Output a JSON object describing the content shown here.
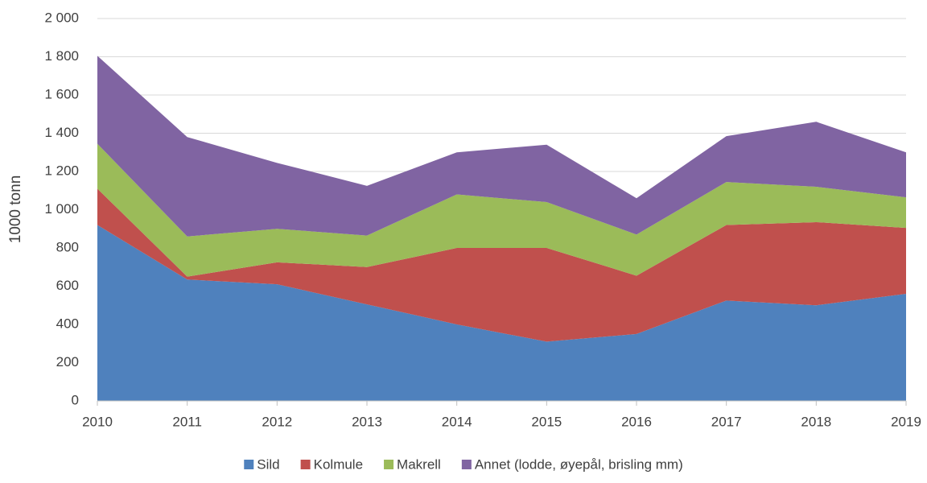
{
  "chart_data": {
    "type": "stacked-area",
    "y_label": "1000 tonn",
    "categories": [
      "2010",
      "2011",
      "2012",
      "2013",
      "2014",
      "2015",
      "2016",
      "2017",
      "2018",
      "2019"
    ],
    "series": [
      {
        "name": "Sild",
        "color": "#4f81bd",
        "values": [
          920,
          635,
          610,
          505,
          400,
          310,
          350,
          525,
          500,
          560
        ]
      },
      {
        "name": "Kolmule",
        "color": "#c0504d",
        "values": [
          190,
          15,
          115,
          195,
          400,
          490,
          305,
          395,
          435,
          345
        ]
      },
      {
        "name": "Makrell",
        "color": "#9bbb59",
        "values": [
          235,
          210,
          175,
          165,
          280,
          240,
          215,
          225,
          185,
          160
        ]
      },
      {
        "name": "Annet (lodde, øyepål, brisling mm)",
        "color": "#8064a2",
        "values": [
          460,
          520,
          345,
          260,
          220,
          300,
          190,
          240,
          340,
          235
        ]
      }
    ],
    "ylim": [
      0,
      2000
    ],
    "yticks": [
      0,
      200,
      400,
      600,
      800,
      {
        "value": 1000,
        "label": "1 000"
      },
      {
        "value": 1200,
        "label": "1 200"
      },
      {
        "value": 1400,
        "label": "1 400"
      },
      {
        "value": 1600,
        "label": "1 600"
      },
      {
        "value": 1800,
        "label": "1 800"
      },
      {
        "value": 2000,
        "label": "2 000"
      }
    ],
    "grid": true
  }
}
